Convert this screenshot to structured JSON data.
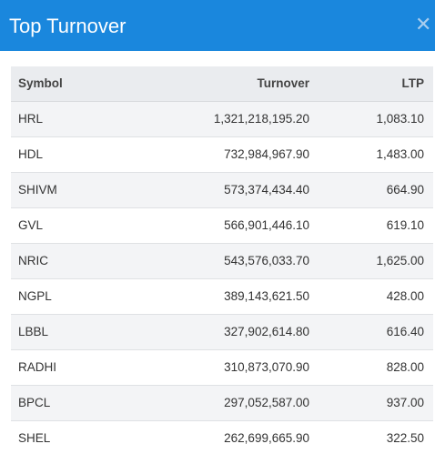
{
  "modal": {
    "title": "Top Turnover",
    "close_glyph": "✕"
  },
  "table": {
    "headers": {
      "symbol": "Symbol",
      "turnover": "Turnover",
      "ltp": "LTP"
    },
    "rows": [
      {
        "symbol": "HRL",
        "turnover": "1,321,218,195.20",
        "ltp": "1,083.10"
      },
      {
        "symbol": "HDL",
        "turnover": "732,984,967.90",
        "ltp": "1,483.00"
      },
      {
        "symbol": "SHIVM",
        "turnover": "573,374,434.40",
        "ltp": "664.90"
      },
      {
        "symbol": "GVL",
        "turnover": "566,901,446.10",
        "ltp": "619.10"
      },
      {
        "symbol": "NRIC",
        "turnover": "543,576,033.70",
        "ltp": "1,625.00"
      },
      {
        "symbol": "NGPL",
        "turnover": "389,143,621.50",
        "ltp": "428.00"
      },
      {
        "symbol": "LBBL",
        "turnover": "327,902,614.80",
        "ltp": "616.40"
      },
      {
        "symbol": "RADHI",
        "turnover": "310,873,070.90",
        "ltp": "828.00"
      },
      {
        "symbol": "BPCL",
        "turnover": "297,052,587.00",
        "ltp": "937.00"
      },
      {
        "symbol": "SHEL",
        "turnover": "262,699,665.90",
        "ltp": "322.50"
      }
    ]
  },
  "colors": {
    "header_bg": "#1a87dd",
    "row_shade": "#f3f4f6",
    "table_head_bg": "#eaecef"
  }
}
